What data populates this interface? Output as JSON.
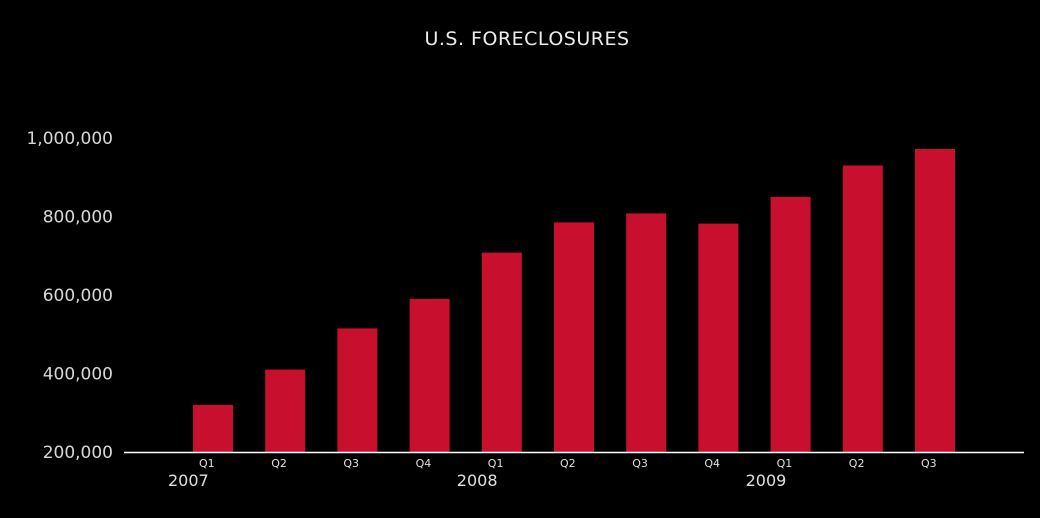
{
  "chart_data": {
    "type": "bar",
    "title": "U.S. FORECLOSURES",
    "categories": [
      "Q1",
      "Q2",
      "Q3",
      "Q4",
      "Q1",
      "Q2",
      "Q3",
      "Q4",
      "Q1",
      "Q2",
      "Q3"
    ],
    "years": [
      {
        "label": "2007",
        "start_index": 0
      },
      {
        "label": "2008",
        "start_index": 4
      },
      {
        "label": "2009",
        "start_index": 8
      }
    ],
    "values": [
      320000,
      410000,
      515000,
      590000,
      708000,
      785000,
      808000,
      782000,
      850000,
      930000,
      972000
    ],
    "ylim": [
      200000,
      1000000
    ],
    "yticks": [
      200000,
      400000,
      600000,
      800000,
      1000000
    ],
    "ytick_labels": [
      "200,000",
      "400,000",
      "600,000",
      "800,000",
      "1,000,000"
    ],
    "xlabel": "",
    "ylabel": "",
    "grid": false,
    "bar_color": "#c8102e",
    "axis_color": "#ffffff",
    "background": "#000000"
  }
}
